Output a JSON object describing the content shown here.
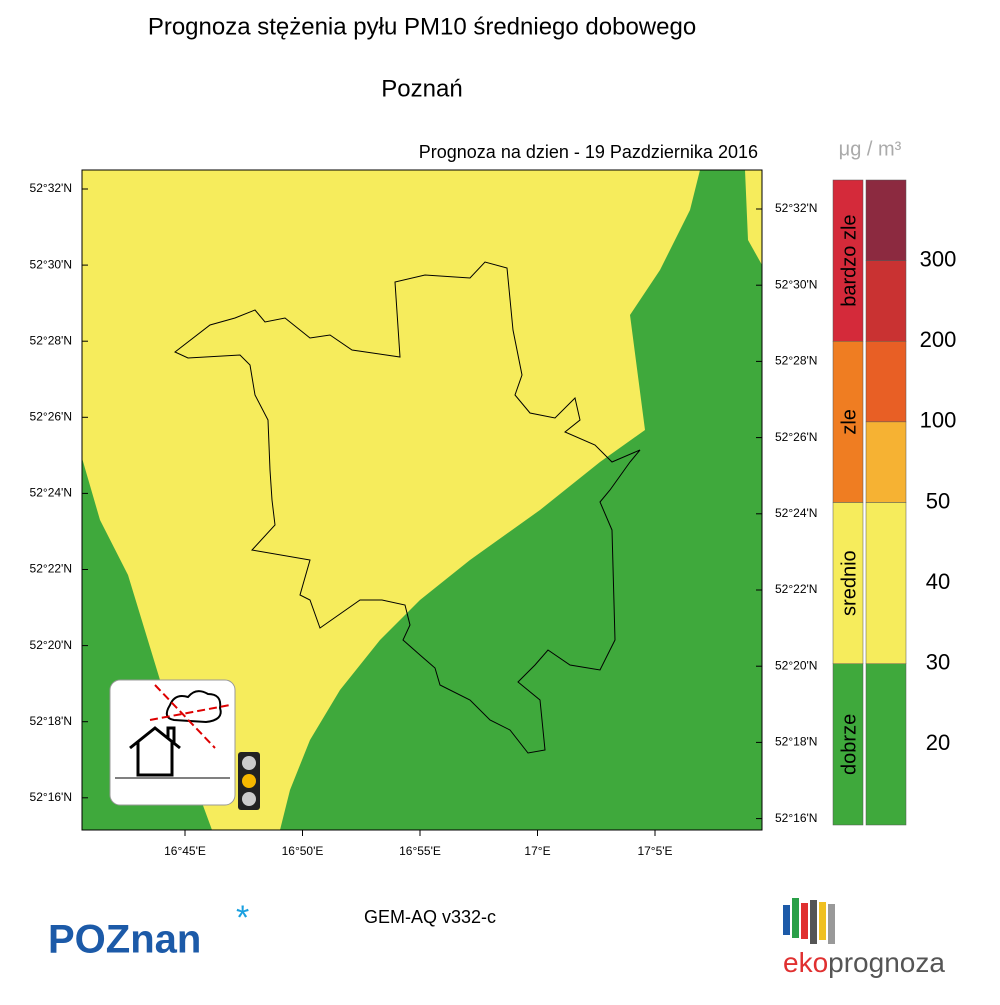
{
  "header": {
    "title": "Prognoza stężenia pyłu PM10 średniego dobowego",
    "city": "Poznań",
    "forecast_date": "Prognoza na dzien -  19 Pazdziernika 2016"
  },
  "map": {
    "lat_labels_left": [
      "52°32'N",
      "52°30'N",
      "52°28'N",
      "52°26'N",
      "52°24'N",
      "52°22'N",
      "52°20'N",
      "52°18'N",
      "52°16'N"
    ],
    "lat_labels_right": [
      "52°32'N",
      "52°30'N",
      "52°28'N",
      "52°26'N",
      "52°24'N",
      "52°22'N",
      "52°20'N",
      "52°18'N",
      "52°16'N"
    ],
    "lon_labels": [
      "16°45'E",
      "16°50'E",
      "16°55'E",
      "17°E",
      "17°5'E"
    ]
  },
  "legend": {
    "unit": "μg / m³",
    "categories": [
      {
        "label": "bardzo zle",
        "color": "#d42a3a"
      },
      {
        "label": "zle",
        "color": "#ef7d22"
      },
      {
        "label": "srednio",
        "color": "#f6ec5c"
      },
      {
        "label": "dobrze",
        "color": "#3fa93c"
      }
    ],
    "scale_colors": [
      "#8c2a40",
      "#c93232",
      "#e85f25",
      "#f6b233",
      "#f6ec5c",
      "#3fa93c"
    ],
    "thresholds": [
      300,
      200,
      100,
      50,
      40,
      30,
      20
    ]
  },
  "footer": {
    "model": "GEM-AQ v332-c",
    "logo_left": "POZnan",
    "logo_right_a": "eko",
    "logo_right_b": "prognoza"
  }
}
